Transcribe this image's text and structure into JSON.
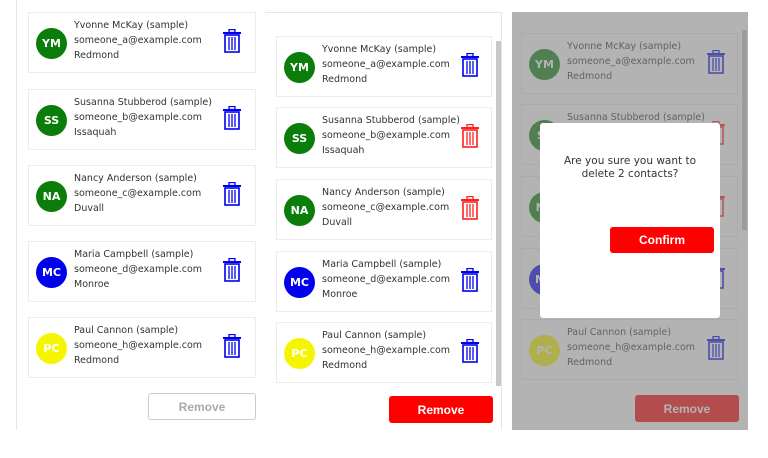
{
  "contacts": [
    {
      "initials": "YM",
      "name": "Yvonne McKay (sample)",
      "email": "someone_a@example.com",
      "city": "Redmond",
      "avatar_color": "#0a7d0a"
    },
    {
      "initials": "SS",
      "name": "Susanna Stubberod (sample)",
      "email": "someone_b@example.com",
      "city": "Issaquah",
      "avatar_color": "#0a7d0a"
    },
    {
      "initials": "NA",
      "name": "Nancy Anderson (sample)",
      "email": "someone_c@example.com",
      "city": "Duvall",
      "avatar_color": "#0a7d0a"
    },
    {
      "initials": "MC",
      "name": "Maria Campbell (sample)",
      "email": "someone_d@example.com",
      "city": "Monroe",
      "avatar_color": "#0000ee"
    },
    {
      "initials": "PC",
      "name": "Paul Cannon (sample)",
      "email": "someone_h@example.com",
      "city": "Redmond",
      "avatar_color": "#f5f500"
    }
  ],
  "panels": [
    {
      "state": "none-selected",
      "selected": [],
      "remove_label": "Remove",
      "remove_enabled": false
    },
    {
      "state": "two-selected",
      "selected": [
        1,
        2
      ],
      "remove_label": "Remove",
      "remove_enabled": true
    },
    {
      "state": "confirm-dialog",
      "selected": [
        1,
        2
      ],
      "remove_label": "Remove",
      "remove_enabled": true,
      "dialog": {
        "message": "Are you sure you want to delete 2 contacts?",
        "confirm_label": "Confirm"
      }
    }
  ],
  "colors": {
    "trash_default": "#0000ee",
    "trash_selected": "#ff2020",
    "remove_active": "#ff0000",
    "remove_disabled_text": "#aaaaaa",
    "overlay": "#808080"
  }
}
